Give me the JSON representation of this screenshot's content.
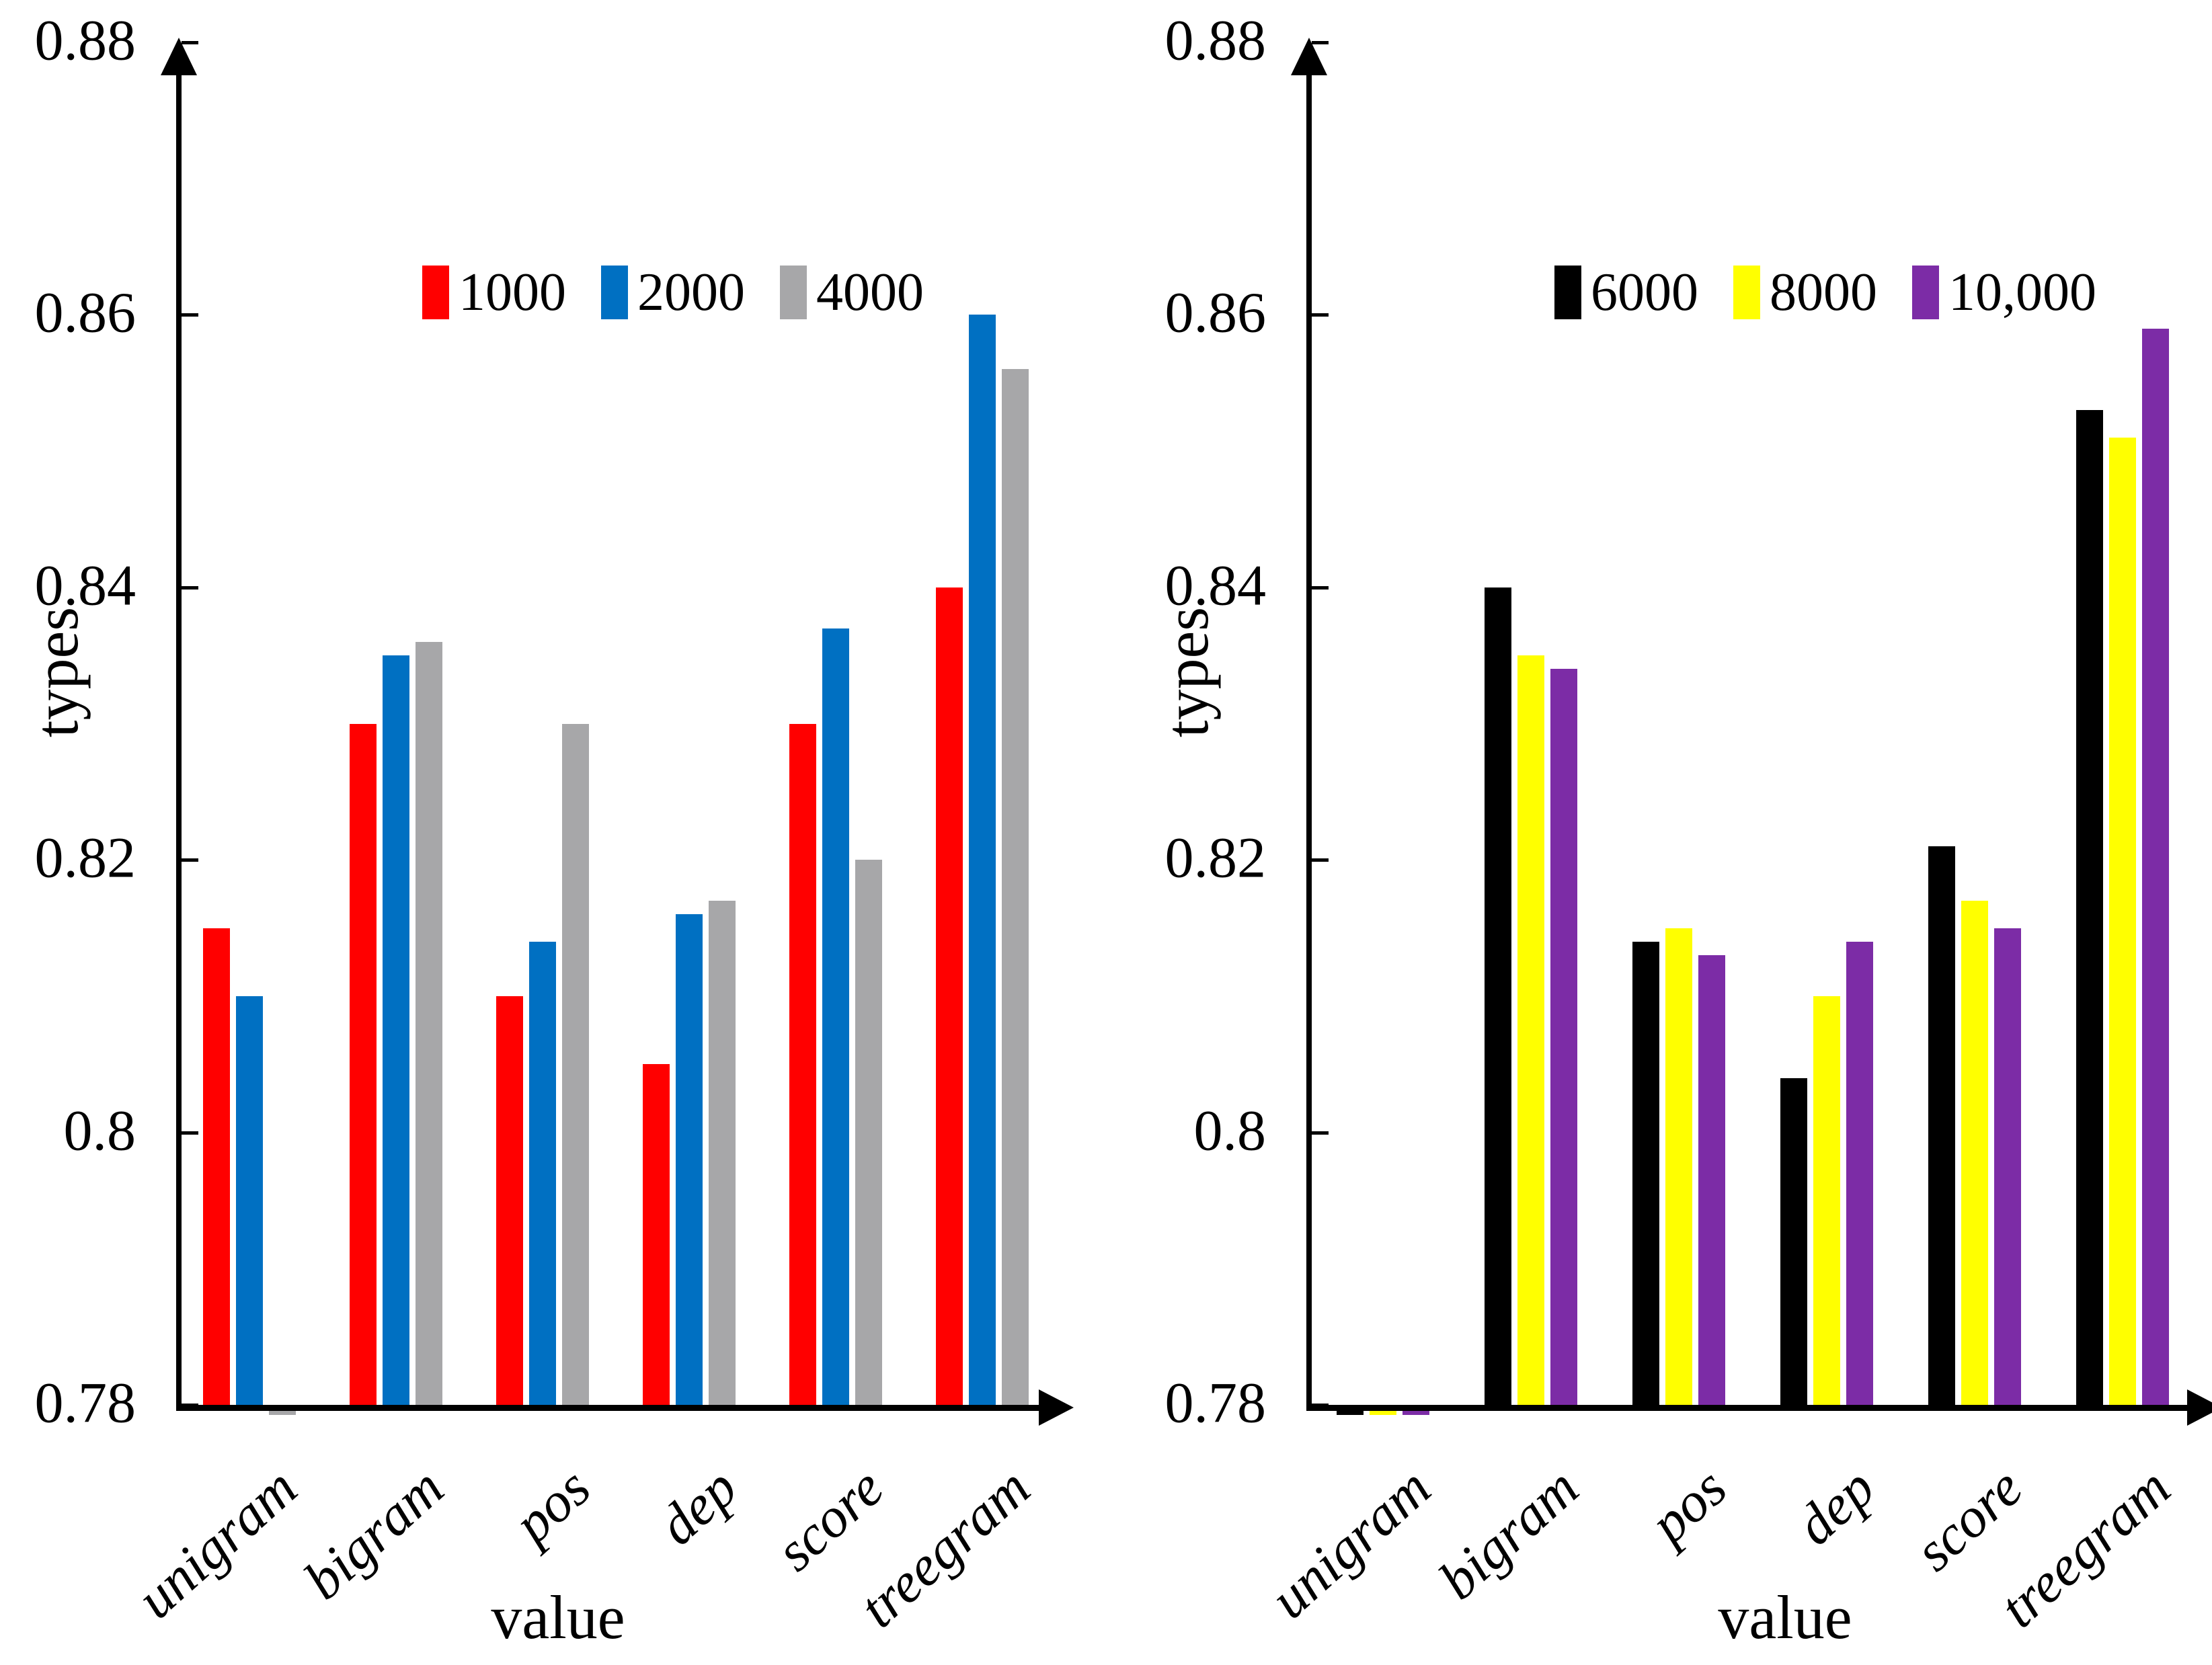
{
  "chart_data": [
    {
      "type": "bar",
      "title": "",
      "ylabel": "types",
      "xlabel": "value",
      "ylim": [
        0.78,
        0.88
      ],
      "ytick_step": 0.02,
      "ytick_labels": [
        "0.88",
        "0.86",
        "0.84",
        "0.82",
        "0.8",
        "0.78"
      ],
      "grid": false,
      "legend_position": "top-center",
      "categories": [
        "unigram",
        "bigram",
        "pos",
        "dep",
        "score",
        "treegram"
      ],
      "series": [
        {
          "name": "1000",
          "color": "#FF0000",
          "values": [
            0.815,
            0.83,
            0.81,
            0.805,
            0.83,
            0.84
          ]
        },
        {
          "name": "2000",
          "color": "#0070C2",
          "values": [
            0.81,
            0.835,
            0.814,
            0.816,
            0.837,
            0.86
          ]
        },
        {
          "name": "4000",
          "color": "#A7A7A9",
          "values": [
            0.78,
            0.836,
            0.83,
            0.817,
            0.82,
            0.856
          ]
        }
      ]
    },
    {
      "type": "bar",
      "title": "",
      "ylabel": "types",
      "xlabel": "value",
      "ylim": [
        0.78,
        0.88
      ],
      "ytick_step": 0.02,
      "ytick_labels": [
        "0.88",
        "0.86",
        "0.84",
        "0.82",
        "0.8",
        "0.78"
      ],
      "grid": false,
      "legend_position": "top-center",
      "categories": [
        "unigram",
        "bigram",
        "pos",
        "dep",
        "score",
        "treegram"
      ],
      "series": [
        {
          "name": "6000",
          "color": "#000000",
          "values": [
            0.78,
            0.84,
            0.814,
            0.804,
            0.821,
            0.853
          ]
        },
        {
          "name": "8000",
          "color": "#FFFF00",
          "values": [
            0.78,
            0.835,
            0.815,
            0.81,
            0.817,
            0.851
          ]
        },
        {
          "name": "10,000",
          "color": "#7C2CA6",
          "values": [
            0.78,
            0.834,
            0.813,
            0.814,
            0.815,
            0.859
          ]
        }
      ]
    }
  ]
}
